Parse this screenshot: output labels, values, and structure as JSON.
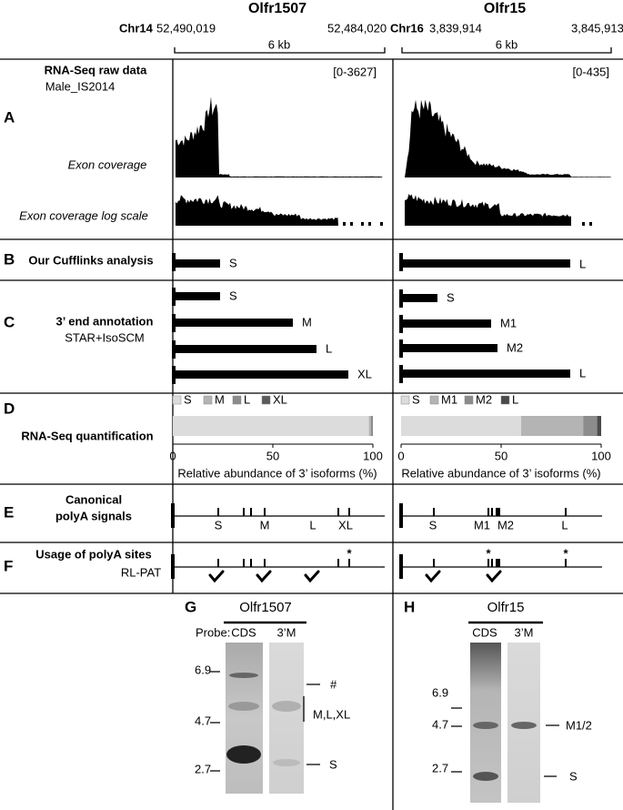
{
  "header": {
    "genes": [
      {
        "name": "Olfr1507",
        "chromosome": "Chr14",
        "start": "52,490,019",
        "end": "52,484,020",
        "scale": "6 kb"
      },
      {
        "name": "Olfr15",
        "chromosome": "Chr16",
        "start": "3,839,914",
        "end": "3,845,913",
        "scale": "6 kb"
      }
    ]
  },
  "panel_a": {
    "letter": "A",
    "title": "RNA-Seq raw data",
    "sample": "Male_IS2014",
    "ranges": [
      "[0-3627]",
      "[0-435]"
    ],
    "tracks": [
      "Exon coverage",
      "Exon coverage log scale"
    ]
  },
  "panel_b": {
    "letter": "B",
    "title": "Our Cufflinks analysis",
    "isoforms": [
      [
        "S"
      ],
      [
        "L"
      ]
    ]
  },
  "panel_c": {
    "letter": "C",
    "title": "3’ end annotation",
    "method": "STAR+IsoSCM",
    "isoforms": [
      [
        "S",
        "M",
        "L",
        "XL"
      ],
      [
        "S",
        "M1",
        "M2",
        "L"
      ]
    ]
  },
  "panel_d": {
    "letter": "D",
    "title": "RNA-Seq quantification",
    "charts": [
      {
        "type": "stacked-bar",
        "categories": [
          "S",
          "M",
          "L",
          "XL"
        ],
        "colors": [
          "#dcdcdc",
          "#b4b4b4",
          "#8c8c8c",
          "#5a5a5a"
        ],
        "values": [
          98,
          1,
          1,
          0
        ],
        "xlim": [
          0,
          100
        ],
        "xticks": [
          0,
          50,
          100
        ],
        "x_label": "Relative abundance of 3’ isoforms (%)"
      },
      {
        "type": "stacked-bar",
        "categories": [
          "S",
          "M1",
          "M2",
          "L"
        ],
        "colors": [
          "#dcdcdc",
          "#b4b4b4",
          "#8c8c8c",
          "#4a4a4a"
        ],
        "values": [
          60,
          31,
          7,
          2
        ],
        "xlim": [
          0,
          100
        ],
        "xticks": [
          0,
          50,
          100
        ],
        "x_label": "Relative abundance of 3’ isoforms (%)"
      }
    ]
  },
  "panel_e": {
    "letter": "E",
    "title_lines": [
      "Canonical",
      "polyA signals"
    ],
    "labels": [
      [
        "S",
        "M",
        "L",
        "XL"
      ],
      [
        "S",
        "M1",
        "M2",
        "L"
      ]
    ]
  },
  "panel_f": {
    "letter": "F",
    "title": "Usage of polyA sites",
    "method": "RL-PAT",
    "marker": "*"
  },
  "panel_g": {
    "letter": "G",
    "gene": "Olfr1507",
    "probe_label": "Probe:",
    "probes": [
      "CDS",
      "3’M"
    ],
    "size_markers": [
      "6.9",
      "4.7",
      "2.7"
    ],
    "bands": [
      "#",
      "M,L,XL",
      "S"
    ]
  },
  "panel_h": {
    "letter": "H",
    "gene": "Olfr15",
    "probes": [
      "CDS",
      "3’M"
    ],
    "size_markers": [
      "6.9",
      "4.7",
      "2.7"
    ],
    "bands": [
      "M1/2",
      "S"
    ]
  }
}
